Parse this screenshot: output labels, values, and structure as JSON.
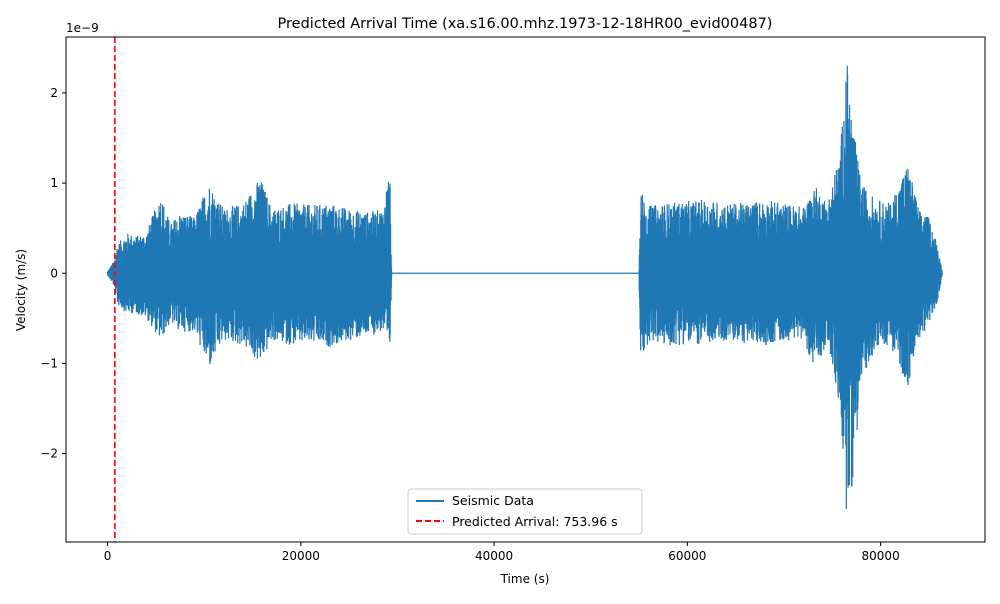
{
  "chart_data": {
    "type": "line",
    "title": "Predicted Arrival Time (xa.s16.00.mhz.1973-12-18HR00_evid00487)",
    "xlabel": "Time (s)",
    "ylabel": "Velocity (m/s)",
    "y_offset_text": "1e−9",
    "xlim": [
      -4300,
      90800
    ],
    "ylim": [
      -2.98,
      2.62
    ],
    "x_scale_exponent": 0,
    "y_scale_exponent": -9,
    "xticks": [
      0,
      20000,
      40000,
      60000,
      80000
    ],
    "xtick_labels": [
      "0",
      "20000",
      "40000",
      "60000",
      "80000"
    ],
    "yticks": [
      -2,
      -1,
      0,
      1,
      2
    ],
    "ytick_labels": [
      "−2",
      "−1",
      "0",
      "1",
      "2"
    ],
    "grid": false,
    "legend_position": "lower center",
    "series": [
      {
        "name": "Seismic Data",
        "color": "#1f77b4",
        "style": "solid",
        "description_of_envelope": "velocity waveform x1e-9 m/s",
        "envelope": [
          {
            "x": 0,
            "min": -0.02,
            "max": 0.02
          },
          {
            "x": 700,
            "min": -0.15,
            "max": 0.15
          },
          {
            "x": 1000,
            "min": -0.35,
            "max": 0.32
          },
          {
            "x": 2000,
            "min": -0.45,
            "max": 0.45
          },
          {
            "x": 3000,
            "min": -0.45,
            "max": 0.42
          },
          {
            "x": 4000,
            "min": -0.5,
            "max": 0.45
          },
          {
            "x": 5500,
            "min": -0.75,
            "max": 0.88
          },
          {
            "x": 6500,
            "min": -0.55,
            "max": 0.55
          },
          {
            "x": 7500,
            "min": -0.65,
            "max": 0.68
          },
          {
            "x": 9000,
            "min": -0.65,
            "max": 0.62
          },
          {
            "x": 10500,
            "min": -1.07,
            "max": 1.02
          },
          {
            "x": 12000,
            "min": -0.75,
            "max": 0.72
          },
          {
            "x": 14000,
            "min": -0.8,
            "max": 0.78
          },
          {
            "x": 15800,
            "min": -1.02,
            "max": 1.07
          },
          {
            "x": 17000,
            "min": -0.75,
            "max": 0.72
          },
          {
            "x": 19000,
            "min": -0.8,
            "max": 0.78
          },
          {
            "x": 21000,
            "min": -0.78,
            "max": 0.76
          },
          {
            "x": 23000,
            "min": -0.82,
            "max": 0.78
          },
          {
            "x": 25000,
            "min": -0.75,
            "max": 0.72
          },
          {
            "x": 27000,
            "min": -0.7,
            "max": 0.68
          },
          {
            "x": 28500,
            "min": -0.65,
            "max": 0.72
          },
          {
            "x": 29200,
            "min": -0.98,
            "max": 1.2
          },
          {
            "x": 29400,
            "min": 0,
            "max": 0
          },
          {
            "x": 55000,
            "min": 0,
            "max": 0
          },
          {
            "x": 55100,
            "min": -1.02,
            "max": 0.94
          },
          {
            "x": 56000,
            "min": -0.75,
            "max": 0.75
          },
          {
            "x": 58000,
            "min": -0.82,
            "max": 0.78
          },
          {
            "x": 60000,
            "min": -0.78,
            "max": 0.8
          },
          {
            "x": 62000,
            "min": -0.8,
            "max": 0.82
          },
          {
            "x": 64000,
            "min": -0.75,
            "max": 0.78
          },
          {
            "x": 66000,
            "min": -0.78,
            "max": 0.78
          },
          {
            "x": 68000,
            "min": -0.8,
            "max": 0.82
          },
          {
            "x": 70000,
            "min": -0.75,
            "max": 0.78
          },
          {
            "x": 72000,
            "min": -0.72,
            "max": 0.74
          },
          {
            "x": 73200,
            "min": -1.1,
            "max": 0.97
          },
          {
            "x": 74500,
            "min": -0.75,
            "max": 0.8
          },
          {
            "x": 75800,
            "min": -1.55,
            "max": 1.35
          },
          {
            "x": 76500,
            "min": -2.72,
            "max": 2.38
          },
          {
            "x": 77200,
            "min": -2.25,
            "max": 1.6
          },
          {
            "x": 78000,
            "min": -1.2,
            "max": 1.0
          },
          {
            "x": 79500,
            "min": -0.82,
            "max": 0.82
          },
          {
            "x": 81000,
            "min": -0.8,
            "max": 0.78
          },
          {
            "x": 82800,
            "min": -1.27,
            "max": 1.23
          },
          {
            "x": 84000,
            "min": -0.72,
            "max": 0.7
          },
          {
            "x": 85000,
            "min": -0.58,
            "max": 0.62
          },
          {
            "x": 85800,
            "min": -0.35,
            "max": 0.35
          },
          {
            "x": 86300,
            "min": -0.08,
            "max": 0.08
          },
          {
            "x": 86400,
            "min": 0,
            "max": 0
          }
        ]
      },
      {
        "name": "Predicted Arrival: 753.96 s",
        "color": "#ff0000",
        "style": "dashed",
        "x": 753.96
      }
    ]
  }
}
